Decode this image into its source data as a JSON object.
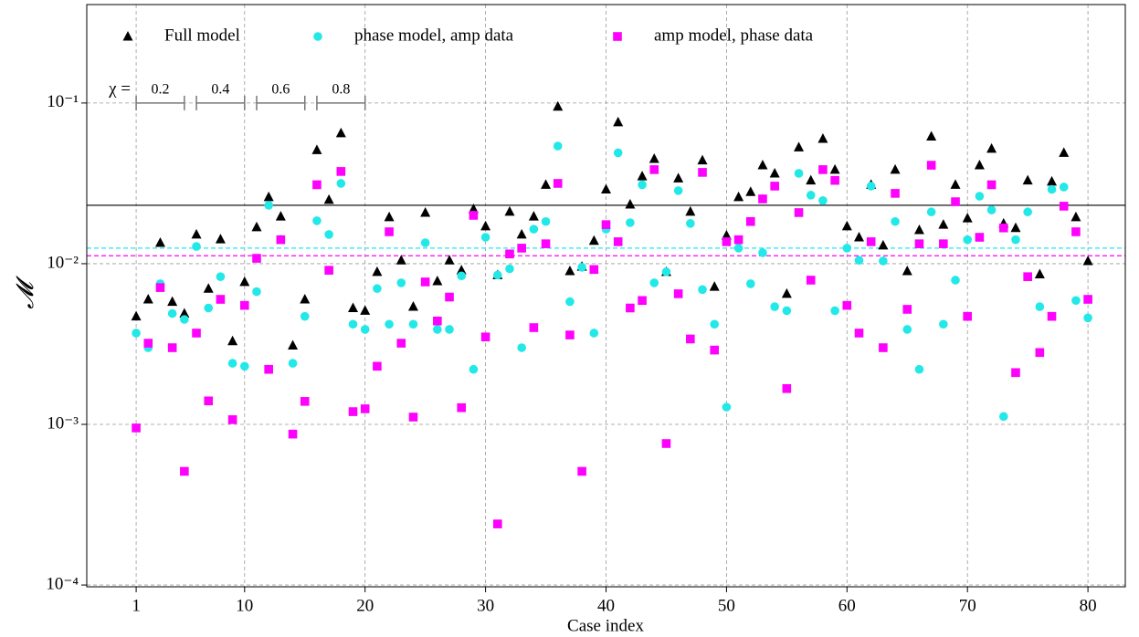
{
  "chart_data": {
    "type": "scatter",
    "x_label": "Case index",
    "y_label": "𝓜",
    "log_y": true,
    "grid": true,
    "legend": "upper left",
    "xlim": [
      -3.1,
      83.1
    ],
    "ylim": [
      9.75e-05,
      0.41
    ],
    "xticks": [
      1,
      10,
      20,
      30,
      40,
      50,
      60,
      70,
      80
    ],
    "yticks": [
      {
        "value": 0.0001,
        "label": "10⁻⁴"
      },
      {
        "value": 0.001,
        "label": "10⁻³"
      },
      {
        "value": 0.01,
        "label": "10⁻²"
      },
      {
        "value": 0.1,
        "label": "10⁻¹"
      }
    ],
    "x": [
      1,
      2,
      3,
      4,
      5,
      6,
      7,
      8,
      9,
      10,
      11,
      12,
      13,
      14,
      15,
      16,
      17,
      18,
      19,
      20,
      21,
      22,
      23,
      24,
      25,
      26,
      27,
      28,
      29,
      30,
      31,
      32,
      33,
      34,
      35,
      36,
      37,
      38,
      39,
      40,
      41,
      42,
      43,
      44,
      45,
      46,
      47,
      48,
      49,
      50,
      51,
      52,
      53,
      54,
      55,
      56,
      57,
      58,
      59,
      60,
      61,
      62,
      63,
      64,
      65,
      66,
      67,
      68,
      69,
      70,
      71,
      72,
      73,
      74,
      75,
      76,
      77,
      78,
      79,
      80
    ],
    "series": [
      {
        "name": "Full model",
        "color": "#000000",
        "marker": "triangle",
        "hline": 0.0231,
        "line_style": "solid",
        "values": [
          0.0047,
          0.006,
          0.0135,
          0.0058,
          0.0049,
          0.0152,
          0.007,
          0.0142,
          0.0033,
          0.0077,
          0.0169,
          0.026,
          0.0197,
          0.0031,
          0.006,
          0.051,
          0.025,
          0.065,
          0.0053,
          0.0051,
          0.0089,
          0.0195,
          0.0105,
          0.0054,
          0.0208,
          0.0078,
          0.0105,
          0.0091,
          0.0219,
          0.0171,
          0.0085,
          0.0211,
          0.0152,
          0.0197,
          0.031,
          0.095,
          0.009,
          0.0096,
          0.0139,
          0.029,
          0.076,
          0.0234,
          0.035,
          0.045,
          0.0089,
          0.034,
          0.0211,
          0.044,
          0.0072,
          0.015,
          0.026,
          0.028,
          0.041,
          0.0365,
          0.0065,
          0.053,
          0.033,
          0.06,
          0.0385,
          0.0171,
          0.0146,
          0.031,
          0.013,
          0.0385,
          0.009,
          0.0162,
          0.062,
          0.0175,
          0.031,
          0.0192,
          0.041,
          0.052,
          0.0178,
          0.0167,
          0.033,
          0.0086,
          0.0325,
          0.049,
          0.0195,
          0.0104
        ]
      },
      {
        "name": "phase model, amp data",
        "color": "#22e8e8",
        "marker": "circle",
        "hline": 0.0125,
        "line_style": "dashed",
        "values": [
          0.0037,
          0.003,
          0.0075,
          0.0049,
          0.0045,
          0.0128,
          0.0053,
          0.0083,
          0.0024,
          0.0023,
          0.0067,
          0.0231,
          0.0142,
          0.0024,
          0.0047,
          0.0185,
          0.0152,
          0.0316,
          0.0042,
          0.0039,
          0.007,
          0.0042,
          0.0076,
          0.0042,
          0.0135,
          0.0039,
          0.0039,
          0.0084,
          0.0022,
          0.0146,
          0.0085,
          0.0093,
          0.003,
          0.0164,
          0.0183,
          0.054,
          0.0058,
          0.0095,
          0.0037,
          0.0164,
          0.049,
          0.018,
          0.031,
          0.0076,
          0.0089,
          0.0285,
          0.0178,
          0.0069,
          0.0042,
          0.00128,
          0.0125,
          0.0075,
          0.0117,
          0.0054,
          0.0051,
          0.0365,
          0.0267,
          0.0247,
          0.0051,
          0.0125,
          0.0105,
          0.0304,
          0.0104,
          0.0183,
          0.0039,
          0.0022,
          0.021,
          0.0042,
          0.0079,
          0.0141,
          0.0263,
          0.0216,
          0.00112,
          0.0141,
          0.021,
          0.0054,
          0.029,
          0.03,
          0.0059,
          0.0046
        ]
      },
      {
        "name": "amp model, phase data",
        "color": "#ff00ff",
        "marker": "square",
        "hline": 0.0112,
        "line_style": "dashed",
        "values": [
          0.00095,
          0.0032,
          0.0071,
          0.003,
          0.00051,
          0.0037,
          0.0014,
          0.006,
          0.00107,
          0.0055,
          0.0108,
          0.0022,
          0.0141,
          0.00087,
          0.00139,
          0.031,
          0.0091,
          0.0375,
          0.0012,
          0.00125,
          0.0023,
          0.0158,
          0.0032,
          0.00111,
          0.0077,
          0.0044,
          0.0062,
          0.00127,
          0.02,
          0.0035,
          0.00024,
          0.0115,
          0.0125,
          0.004,
          0.0133,
          0.0316,
          0.0036,
          0.00051,
          0.0092,
          0.0175,
          0.0137,
          0.0053,
          0.0059,
          0.0385,
          0.00076,
          0.0065,
          0.0034,
          0.037,
          0.0029,
          0.0137,
          0.0141,
          0.0183,
          0.0253,
          0.0304,
          0.00167,
          0.0208,
          0.0079,
          0.0385,
          0.033,
          0.0055,
          0.0037,
          0.0137,
          0.003,
          0.0274,
          0.0052,
          0.0133,
          0.041,
          0.0133,
          0.0243,
          0.0047,
          0.0146,
          0.031,
          0.0167,
          0.0021,
          0.0083,
          0.0028,
          0.0047,
          0.0228,
          0.0158,
          0.006
        ]
      }
    ],
    "chi_annotation": {
      "label": "χ =",
      "y": 0.1,
      "groups": [
        {
          "label": "0.2",
          "from": 1,
          "to": 5
        },
        {
          "label": "0.4",
          "from": 6,
          "to": 10
        },
        {
          "label": "0.6",
          "from": 11,
          "to": 15
        },
        {
          "label": "0.8",
          "from": 16,
          "to": 20
        }
      ]
    }
  }
}
